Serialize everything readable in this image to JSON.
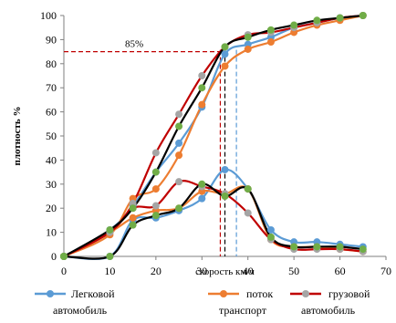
{
  "chart_data": {
    "type": "line",
    "xlabel": "скорость км/ч",
    "ylabel": "плотность %",
    "xlim": [
      0,
      70
    ],
    "ylim": [
      0,
      100
    ],
    "xticks": [
      "0",
      "10",
      "20",
      "30",
      "40",
      "50",
      "60",
      "70"
    ],
    "yticks": [
      "0",
      "10",
      "20",
      "30",
      "40",
      "50",
      "60",
      "70",
      "80",
      "90",
      "100"
    ],
    "grid": "none",
    "legend_position": "bottom",
    "annotation": {
      "text": "85%",
      "y": 85,
      "x_lines": [
        34,
        35,
        37.5
      ],
      "x_line_colors": [
        "#c00000",
        "#000000",
        "#5b9bd5"
      ]
    },
    "series": [
      {
        "name": "Легковой автомобиль",
        "legend_lines": [
          "Легковой",
          "автомобиль"
        ],
        "color": "#5b9bd5",
        "marker": "#5b9bd5",
        "cumulative": {
          "x": [
            0,
            10,
            15,
            20,
            25,
            30,
            35,
            40,
            45,
            50,
            55,
            60,
            65
          ],
          "y": [
            0,
            11,
            21,
            35,
            47,
            62,
            84,
            88,
            91,
            95,
            97,
            99,
            100
          ]
        },
        "frequency": {
          "x": [
            0,
            10,
            15,
            20,
            25,
            30,
            35,
            40,
            45,
            50,
            55,
            60,
            65
          ],
          "y": [
            0,
            0,
            15,
            16,
            19,
            24,
            36,
            28,
            11,
            6,
            6,
            5,
            4
          ]
        }
      },
      {
        "name": "поток транспорт",
        "legend_lines": [
          "поток",
          "транспорт"
        ],
        "color": "#ed7d31",
        "marker": "#ed7d31",
        "cumulative": {
          "x": [
            0,
            10,
            15,
            20,
            25,
            30,
            35,
            40,
            45,
            50,
            55,
            60,
            65
          ],
          "y": [
            0,
            9,
            24,
            28,
            42,
            63,
            79,
            86,
            89,
            93,
            96,
            98,
            100
          ]
        },
        "frequency": {
          "x": [
            0,
            10,
            15,
            20,
            25,
            30,
            35,
            40,
            45,
            50,
            55,
            60,
            65
          ],
          "y": [
            0,
            10,
            16,
            19,
            20,
            27,
            26,
            28,
            7,
            4,
            4,
            3,
            2
          ]
        }
      },
      {
        "name": "грузовой автомобиль",
        "legend_lines": [
          "грузовой",
          "автомобиль"
        ],
        "color": "#c00000",
        "marker": "#a5a5a5",
        "cumulative": {
          "x": [
            0,
            10,
            15,
            20,
            25,
            30,
            35,
            40,
            45,
            50,
            55,
            60,
            65
          ],
          "y": [
            0,
            10,
            22,
            43,
            59,
            75,
            87,
            92,
            93,
            95,
            97,
            99,
            100
          ]
        },
        "frequency": {
          "x": [
            0,
            10,
            15,
            20,
            25,
            30,
            35,
            40,
            45,
            50,
            55,
            60,
            65
          ],
          "y": [
            0,
            10,
            20,
            21,
            31,
            29,
            26,
            18,
            7,
            3,
            3,
            3,
            2
          ]
        }
      },
      {
        "name": "",
        "color": "#000000",
        "marker": "#70ad47",
        "cumulative": {
          "x": [
            0,
            10,
            15,
            20,
            25,
            30,
            35,
            40,
            45,
            50,
            55,
            60,
            65
          ],
          "y": [
            0,
            11,
            20,
            35,
            54,
            70,
            87,
            91,
            94,
            96,
            98,
            99,
            100
          ]
        },
        "frequency": {
          "x": [
            0,
            10,
            15,
            20,
            25,
            30,
            35,
            40,
            45,
            50,
            55,
            60,
            65
          ],
          "y": [
            0,
            0,
            13,
            17,
            20,
            30,
            25,
            28,
            8,
            4,
            4,
            4,
            3
          ]
        }
      }
    ]
  }
}
